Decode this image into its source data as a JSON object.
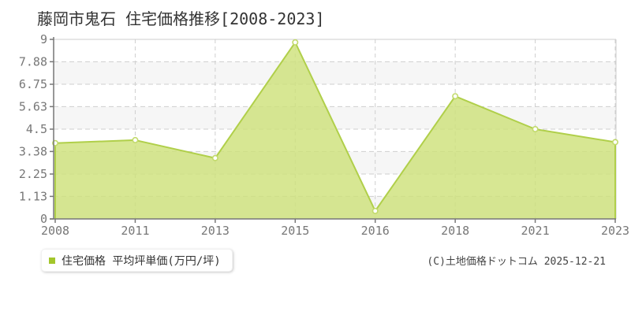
{
  "title": "藤岡市鬼石 住宅価格推移[2008-2023]",
  "legend": {
    "label": "住宅価格 平均坪単価(万円/坪)",
    "marker_color": "#a3c62b"
  },
  "copyright": "(C)土地価格ドットコム 2025-12-21",
  "chart_data": {
    "type": "area",
    "title": "藤岡市鬼石 住宅価格推移[2008-2023]",
    "categories": [
      "2008",
      "2011",
      "2013",
      "2015",
      "2016",
      "2018",
      "2021",
      "2023"
    ],
    "series": [
      {
        "name": "住宅価格 平均坪単価(万円/坪)",
        "values": [
          3.8,
          3.95,
          3.05,
          8.85,
          0.4,
          6.15,
          4.5,
          3.85
        ]
      }
    ],
    "unit": "万円/坪",
    "xlabel": "",
    "ylabel": "",
    "ylim": [
      0,
      9
    ],
    "yticks": [
      0,
      1.13,
      2.25,
      3.38,
      4.5,
      5.63,
      6.75,
      7.88,
      9
    ],
    "grid": "dashed",
    "legend_position": "bottom-left",
    "line_color": "#b0cf4a",
    "fill_color": "rgba(205,225,120,0.8)",
    "marker_fill": "#ffffff",
    "marker_border": "#c2da6c",
    "band_colors": [
      "#ffffff",
      "#f6f6f6"
    ],
    "grid_color": "#cfcfcf",
    "border_color": "#cccccc",
    "axis_color": "#777777",
    "label_color": "#777777"
  }
}
